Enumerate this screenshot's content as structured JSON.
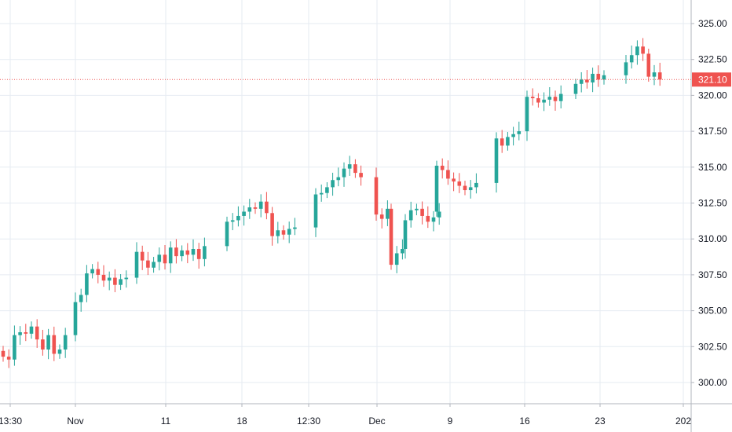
{
  "chart_data": {
    "type": "candlestick",
    "title": "",
    "xlabel": "",
    "ylabel": "",
    "ylim": [
      297.5,
      326.5
    ],
    "yticks": [
      "325.00",
      "322.50",
      "320.00",
      "317.50",
      "315.00",
      "312.50",
      "310.00",
      "307.50",
      "305.00",
      "302.50",
      "300.00"
    ],
    "x_labels": [
      "13:30",
      "Nov",
      "11",
      "18",
      "12:30",
      "Dec",
      "9",
      "16",
      "23",
      "202"
    ],
    "last_price": "321.10",
    "grid": true,
    "colors": {
      "up": "#26a69a",
      "down": "#ef5350",
      "grid": "#e6ebf2",
      "last_price": "#ef5350",
      "axis_border": "#b2b5be"
    },
    "closes": [
      301.8,
      301.6,
      303.3,
      303.5,
      303.4,
      303.9,
      303.0,
      302.3,
      303.3,
      302.0,
      302.3,
      303.3,
      305.6,
      306.1,
      307.6,
      307.9,
      307.5,
      307.1,
      307.3,
      306.8,
      307.2,
      307.3,
      309.1,
      308.5,
      308.0,
      308.4,
      308.9,
      308.3,
      309.4,
      308.8,
      309.2,
      308.9,
      309.3,
      308.6,
      309.5,
      311.2,
      311.3,
      311.6,
      311.9,
      312.2,
      312.1,
      312.6,
      311.8,
      310.2,
      310.6,
      310.3,
      310.7,
      310.8,
      313.1,
      313.2,
      313.6,
      314.1,
      314.3,
      314.9,
      315.2,
      314.6,
      314.3,
      311.7,
      311.4,
      312.1,
      308.2,
      309.0,
      309.3,
      311.3,
      312.0,
      312.1,
      311.6,
      311.2,
      311.5,
      311.9,
      315.1,
      314.8,
      314.2,
      314.0,
      313.7,
      313.4,
      313.6,
      313.9,
      317.0,
      316.5,
      317.1,
      317.3,
      317.5,
      319.9,
      319.8,
      319.5,
      319.7,
      319.9,
      319.6,
      320.1,
      320.8,
      321.1,
      320.9,
      321.5,
      321.1,
      321.4,
      322.3,
      322.8,
      323.4,
      322.9,
      321.3,
      321.6,
      321.1
    ]
  }
}
